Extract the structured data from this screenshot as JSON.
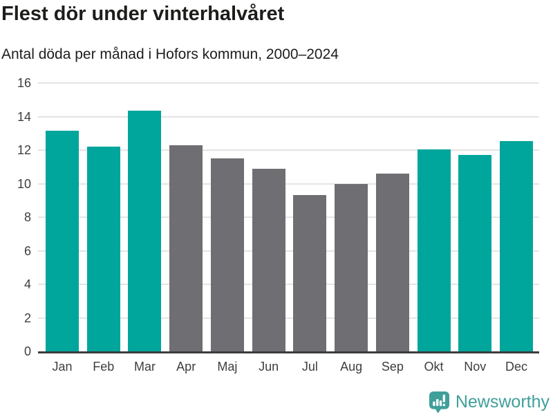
{
  "header": {
    "title": "Flest dör under vinterhalvåret",
    "subtitle": "Antal döda per månad i Hofors kommun, 2000–2024"
  },
  "footer": {
    "brand": "Newsworthy"
  },
  "colors": {
    "highlight": "#00a59c",
    "muted": "#6e6e73",
    "grid": "#e4e4e4",
    "axis": "#3c3c3c",
    "text": "#1d1d1b",
    "tick_text": "#3e3e3e",
    "logo": "#3f9f9a"
  },
  "chart_data": {
    "type": "bar",
    "title": "Flest dör under vinterhalvåret",
    "subtitle": "Antal döda per månad i Hofors kommun, 2000–2024",
    "categories": [
      "Jan",
      "Feb",
      "Mar",
      "Apr",
      "Maj",
      "Jun",
      "Jul",
      "Aug",
      "Sep",
      "Okt",
      "Nov",
      "Dec"
    ],
    "values": [
      13.15,
      12.2,
      14.35,
      12.3,
      11.5,
      10.9,
      9.3,
      10.0,
      10.6,
      12.05,
      11.7,
      12.55
    ],
    "highlighted": [
      true,
      true,
      true,
      false,
      false,
      false,
      false,
      false,
      false,
      true,
      true,
      true
    ],
    "xlabel": "",
    "ylabel": "",
    "ylim": [
      0,
      16
    ],
    "yticks": [
      0,
      2,
      4,
      6,
      8,
      10,
      12,
      14,
      16
    ],
    "grid": true,
    "legend": false
  }
}
